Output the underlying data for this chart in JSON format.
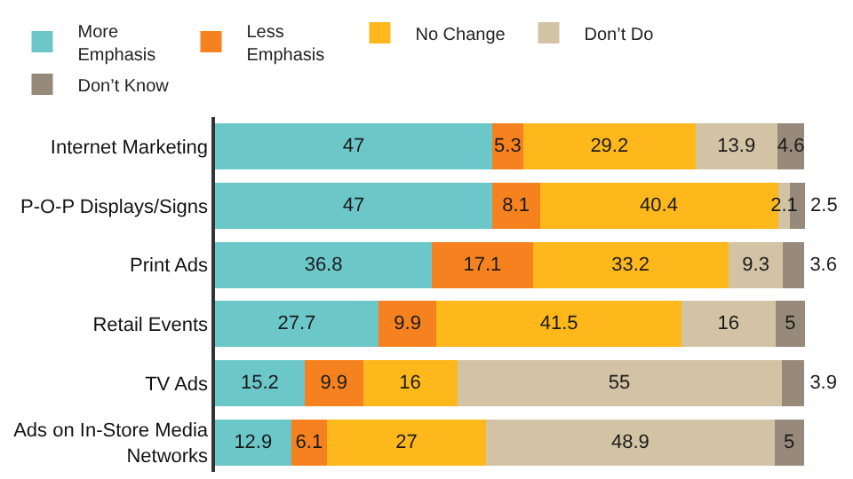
{
  "chart_data": {
    "type": "bar",
    "orientation": "horizontal",
    "stacked": true,
    "data_labels": true,
    "legend": "top",
    "tick_labels": "y",
    "categories": [
      "Internet Marketing",
      "P-O-P Displays/Signs",
      "Print Ads",
      "Retail Events",
      "TV Ads",
      "Ads on In-Store Media Networks"
    ],
    "xlim": [
      0,
      101
    ],
    "series": [
      {
        "name": "More Emphasis",
        "color": "#6cc7c9",
        "values": [
          47,
          47,
          36.8,
          27.7,
          15.2,
          12.9
        ]
      },
      {
        "name": "Less Emphasis",
        "color": "#f5821f",
        "values": [
          5.3,
          8.1,
          17.1,
          9.9,
          9.9,
          6.1
        ]
      },
      {
        "name": "No Change",
        "color": "#ffb81c",
        "values": [
          29.2,
          40.4,
          33.2,
          41.5,
          16,
          27
        ]
      },
      {
        "name": "Don’t Do",
        "color": "#d3c3a5",
        "values": [
          13.9,
          2.1,
          9.3,
          16,
          55,
          48.9
        ]
      },
      {
        "name": "Don’t Know",
        "color": "#978a7a",
        "values": [
          4.6,
          2.5,
          3.6,
          5,
          3.9,
          5
        ]
      }
    ]
  }
}
